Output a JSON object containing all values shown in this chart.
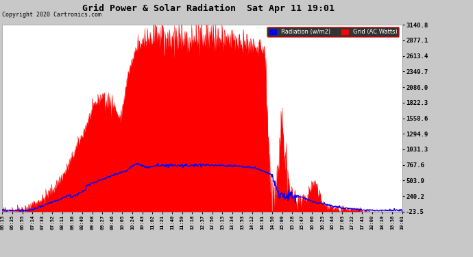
{
  "title": "Grid Power & Solar Radiation  Sat Apr 11 19:01",
  "copyright": "Copyright 2020 Cartronics.com",
  "legend_radiation": "Radiation (w/m2)",
  "legend_grid": "Grid (AC Watts)",
  "yticks": [
    -23.5,
    240.2,
    503.9,
    767.6,
    1031.3,
    1294.9,
    1558.6,
    1822.3,
    2086.0,
    2349.7,
    2613.4,
    2877.1,
    3140.8
  ],
  "ymin": -23.5,
  "ymax": 3140.8,
  "background_color": "#c8c8c8",
  "plot_bg_color": "#ffffff",
  "grid_color": "#ffffff",
  "radiation_color": "#ff0000",
  "blue_line_color": "#0000ff",
  "xtick_labels": [
    "06:15",
    "06:35",
    "06:55",
    "07:14",
    "07:33",
    "07:52",
    "08:11",
    "08:30",
    "08:49",
    "09:08",
    "09:27",
    "09:46",
    "10:05",
    "10:24",
    "10:43",
    "11:02",
    "11:21",
    "11:40",
    "11:59",
    "12:18",
    "12:37",
    "12:56",
    "13:15",
    "13:34",
    "13:53",
    "14:12",
    "14:31",
    "14:50",
    "15:09",
    "15:28",
    "15:47",
    "16:06",
    "16:25",
    "16:44",
    "17:03",
    "17:22",
    "17:41",
    "18:00",
    "18:19",
    "18:38",
    "19:01"
  ],
  "n_points": 820
}
